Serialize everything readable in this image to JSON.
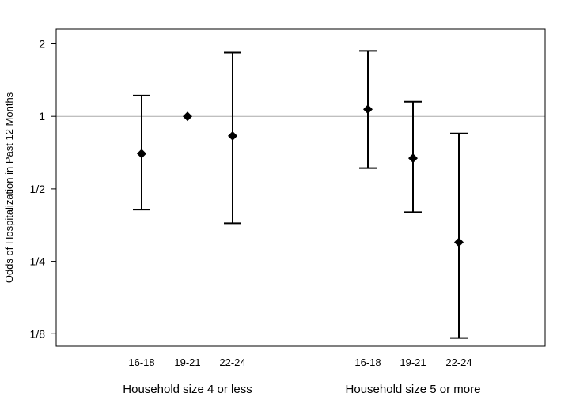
{
  "chart_data": {
    "type": "scatter",
    "title": "",
    "ylabel": "Odds of Hospitalization in Past 12 Months",
    "y_scale": "log2",
    "ylim": [
      0.111,
      2.3
    ],
    "y_ticks": [
      {
        "value": 2,
        "label": "2"
      },
      {
        "value": 1,
        "label": "1"
      },
      {
        "value": 0.5,
        "label": "1/2"
      },
      {
        "value": 0.25,
        "label": "1/4"
      },
      {
        "value": 0.125,
        "label": "1/8"
      }
    ],
    "reference_line": 1,
    "grid": false,
    "groups": [
      {
        "label": "Household size 4 or less",
        "points": [
          {
            "category": "16-18",
            "estimate": 0.7,
            "lower": 0.41,
            "upper": 1.22
          },
          {
            "category": "19-21",
            "estimate": 1.0,
            "lower": null,
            "upper": null
          },
          {
            "category": "22-24",
            "estimate": 0.83,
            "lower": 0.36,
            "upper": 1.84
          }
        ]
      },
      {
        "label": "Household size 5 or more",
        "points": [
          {
            "category": "16-18",
            "estimate": 1.07,
            "lower": 0.61,
            "upper": 1.87
          },
          {
            "category": "19-21",
            "estimate": 0.67,
            "lower": 0.4,
            "upper": 1.15
          },
          {
            "category": "22-24",
            "estimate": 0.3,
            "lower": 0.12,
            "upper": 0.85
          }
        ]
      }
    ],
    "colors": {
      "marks": "#000000",
      "frame": "#000000",
      "reference_line": "#aaaaaa"
    }
  }
}
